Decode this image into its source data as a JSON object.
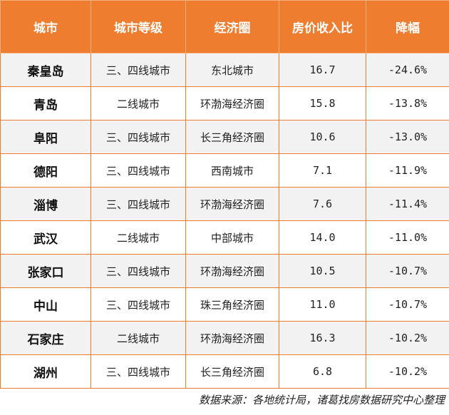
{
  "table": {
    "headers": [
      "城市",
      "城市等级",
      "经济圈",
      "房价收入比",
      "降幅"
    ],
    "rows": [
      {
        "city": "秦皇岛",
        "tier": "三、四线城市",
        "zone": "东北城市",
        "ratio": "16.7",
        "drop": "-24.6%"
      },
      {
        "city": "青岛",
        "tier": "二线城市",
        "zone": "环渤海经济圈",
        "ratio": "15.8",
        "drop": "-13.8%"
      },
      {
        "city": "阜阳",
        "tier": "三、四线城市",
        "zone": "长三角经济圈",
        "ratio": "10.6",
        "drop": "-13.0%"
      },
      {
        "city": "德阳",
        "tier": "三、四线城市",
        "zone": "西南城市",
        "ratio": "7.1",
        "drop": "-11.9%"
      },
      {
        "city": "淄博",
        "tier": "三、四线城市",
        "zone": "环渤海经济圈",
        "ratio": "7.6",
        "drop": "-11.4%"
      },
      {
        "city": "武汉",
        "tier": "二线城市",
        "zone": "中部城市",
        "ratio": "14.0",
        "drop": "-11.0%"
      },
      {
        "city": "张家口",
        "tier": "三、四线城市",
        "zone": "环渤海经济圈",
        "ratio": "10.5",
        "drop": "-10.7%"
      },
      {
        "city": "中山",
        "tier": "三、四线城市",
        "zone": "珠三角经济圈",
        "ratio": "11.0",
        "drop": "-10.7%"
      },
      {
        "city": "石家庄",
        "tier": "二线城市",
        "zone": "环渤海经济圈",
        "ratio": "16.3",
        "drop": "-10.2%"
      },
      {
        "city": "湖州",
        "tier": "三、四线城市",
        "zone": "长三角经济圈",
        "ratio": "6.8",
        "drop": "-10.2%"
      }
    ]
  },
  "source": "数据来源：各地统计局，诸葛找房数据研究中心整理",
  "colors": {
    "header_bg": "#ef7d2f",
    "border": "#ef7d2f",
    "stripe": "#f2f2f2"
  }
}
